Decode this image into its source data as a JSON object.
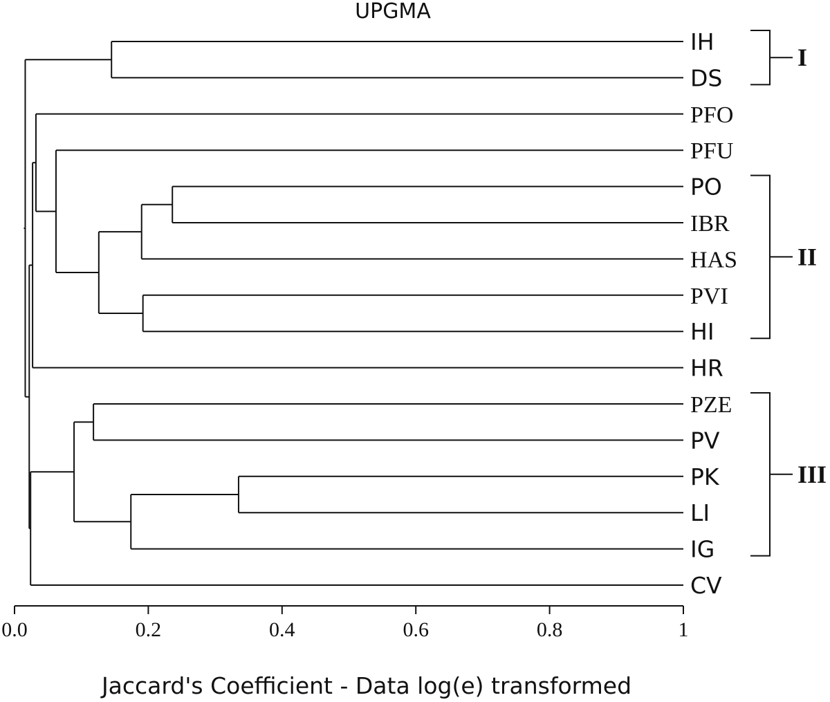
{
  "chart_data": {
    "type": "dendrogram",
    "title": "UPGMA",
    "xlabel": "Jaccard's Coefficient - Data log(e) transformed",
    "xlim": [
      0.0,
      1.0
    ],
    "xticks": [
      {
        "value": 0.0,
        "label": "0.0"
      },
      {
        "value": 0.2,
        "label": "0.2"
      },
      {
        "value": 0.4,
        "label": "0.4"
      },
      {
        "value": 0.6,
        "label": "0.6"
      },
      {
        "value": 0.8,
        "label": "0.8"
      },
      {
        "value": 1.0,
        "label": "1"
      }
    ],
    "leaves": [
      "IH",
      "DS",
      "PFO",
      "PFU",
      "PO",
      "IBR",
      "HAS",
      "PVI",
      "HI",
      "HR",
      "PZE",
      "PV",
      "PK",
      "LI",
      "IG",
      "CV"
    ],
    "leaf_value": 1.0,
    "merges": [
      {
        "id": "n_ih_ds",
        "children": [
          "IH",
          "DS"
        ],
        "value": 0.145
      },
      {
        "id": "n_po_ibr",
        "children": [
          "PO",
          "IBR"
        ],
        "value": 0.236
      },
      {
        "id": "n_poibr_has",
        "children": [
          "n_po_ibr",
          "HAS"
        ],
        "value": 0.19
      },
      {
        "id": "n_pvi_hi",
        "children": [
          "PVI",
          "HI"
        ],
        "value": 0.192
      },
      {
        "id": "n_cluster2",
        "children": [
          "n_poibr_has",
          "n_pvi_hi"
        ],
        "value": 0.126
      },
      {
        "id": "n_pfu_c2",
        "children": [
          "PFU",
          "n_cluster2"
        ],
        "value": 0.062
      },
      {
        "id": "n_pfo_rest",
        "children": [
          "PFO",
          "n_pfu_c2"
        ],
        "value": 0.032
      },
      {
        "id": "n_hr",
        "children": [
          "n_pfo_rest",
          "HR"
        ],
        "value": 0.027
      },
      {
        "id": "n_pze_pv",
        "children": [
          "PZE",
          "PV"
        ],
        "value": 0.118
      },
      {
        "id": "n_pk_li",
        "children": [
          "PK",
          "LI"
        ],
        "value": 0.335
      },
      {
        "id": "n_pkli_ig",
        "children": [
          "n_pk_li",
          "IG"
        ],
        "value": 0.174
      },
      {
        "id": "n_cluster3",
        "children": [
          "n_pze_pv",
          "n_pkli_ig"
        ],
        "value": 0.089
      },
      {
        "id": "n_c3_cv",
        "children": [
          "n_cluster3",
          "CV"
        ],
        "value": 0.024
      },
      {
        "id": "n_mid",
        "children": [
          "n_hr",
          "n_c3_cv"
        ],
        "value": 0.022
      },
      {
        "id": "root",
        "children": [
          "n_ih_ds",
          "n_mid"
        ],
        "value": 0.016
      }
    ],
    "clusters": [
      {
        "label": "I",
        "from": "IH",
        "to": "DS"
      },
      {
        "label": "II",
        "from": "PO",
        "to": "HI"
      },
      {
        "label": "III",
        "from": "PZE",
        "to": "IG"
      }
    ]
  }
}
